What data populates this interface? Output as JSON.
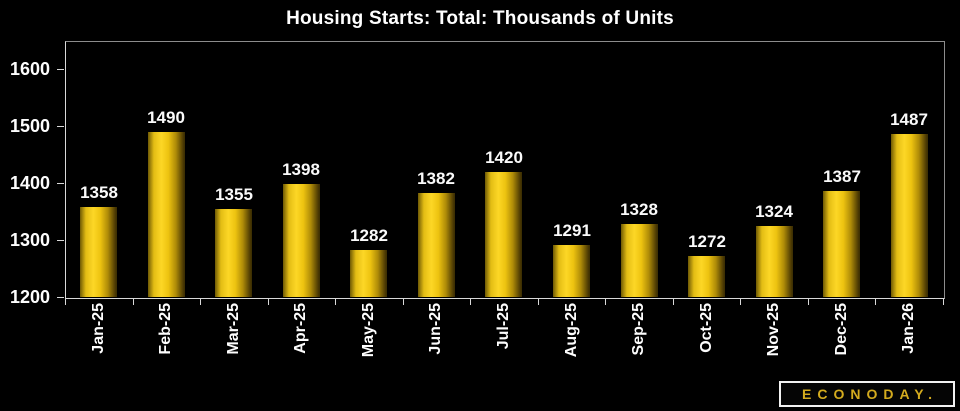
{
  "title": "Housing Starts: Total: Thousands of Units",
  "chart_data": {
    "type": "bar",
    "title": "Housing Starts: Total: Thousands of Units",
    "categories": [
      "Jan-25",
      "Feb-25",
      "Mar-25",
      "Apr-25",
      "May-25",
      "Jun-25",
      "Jul-25",
      "Aug-25",
      "Sep-25",
      "Oct-25",
      "Nov-25",
      "Dec-25",
      "Jan-26"
    ],
    "values": [
      1358,
      1490,
      1355,
      1398,
      1282,
      1382,
      1420,
      1291,
      1328,
      1272,
      1324,
      1387,
      1487
    ],
    "xlabel": "",
    "ylabel": "",
    "ylim": [
      1200,
      1650
    ],
    "yticks": [
      1200,
      1300,
      1400,
      1500,
      1600
    ],
    "grid": "off",
    "legend_position": "none",
    "bar_color": "#f5c518",
    "background_color": "#000000",
    "text_color": "#ffffff",
    "data_labels": "above-bars"
  },
  "branding": {
    "logo_text": "ECONODAY.",
    "logo_text_color": "#d4ab1e"
  }
}
